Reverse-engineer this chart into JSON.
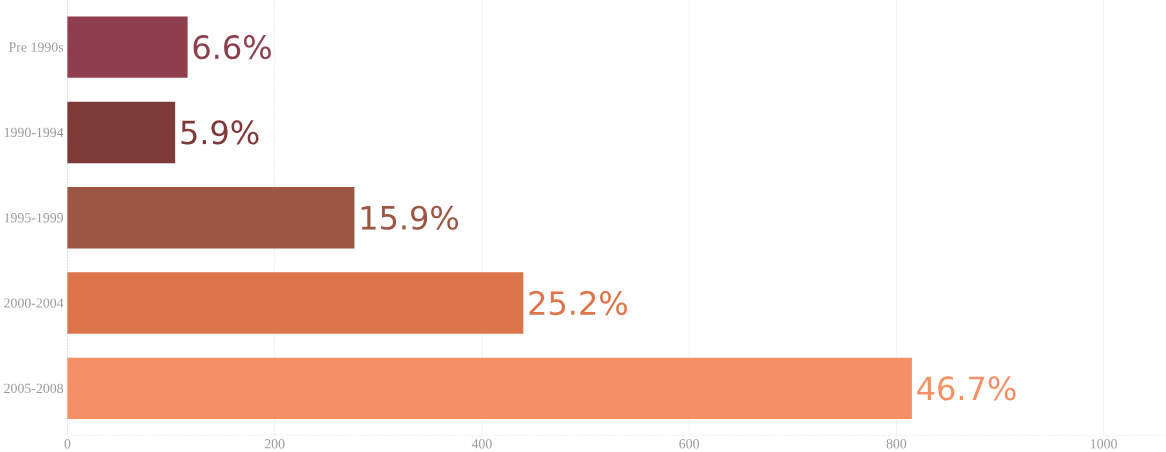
{
  "chart_data": {
    "type": "bar",
    "orientation": "horizontal",
    "categories": [
      "Pre 1990s",
      "1990-1994",
      "1995-1999",
      "2000-2004",
      "2005-2008"
    ],
    "values": [
      116,
      104,
      277,
      440,
      815
    ],
    "colors": [
      "#8e3e4c",
      "#7d3a38",
      "#9b5744",
      "#dc7549",
      "#f59066"
    ],
    "annotations": [
      {
        "text": "6.6%",
        "x": 116,
        "y": "Pre 1990s"
      },
      {
        "text": "5.9%",
        "x": 104,
        "y": "1990-1994"
      },
      {
        "text": "15.9%",
        "x": 277,
        "y": "1995-1999"
      },
      {
        "text": "25.2%",
        "x": 440,
        "y": "2000-2004"
      },
      {
        "text": "46.7%",
        "x": 815,
        "y": "2005-2008"
      }
    ],
    "xlim": [
      0,
      1060
    ],
    "xticks": [
      0,
      200,
      400,
      600,
      800,
      1000
    ],
    "grid": "x"
  }
}
